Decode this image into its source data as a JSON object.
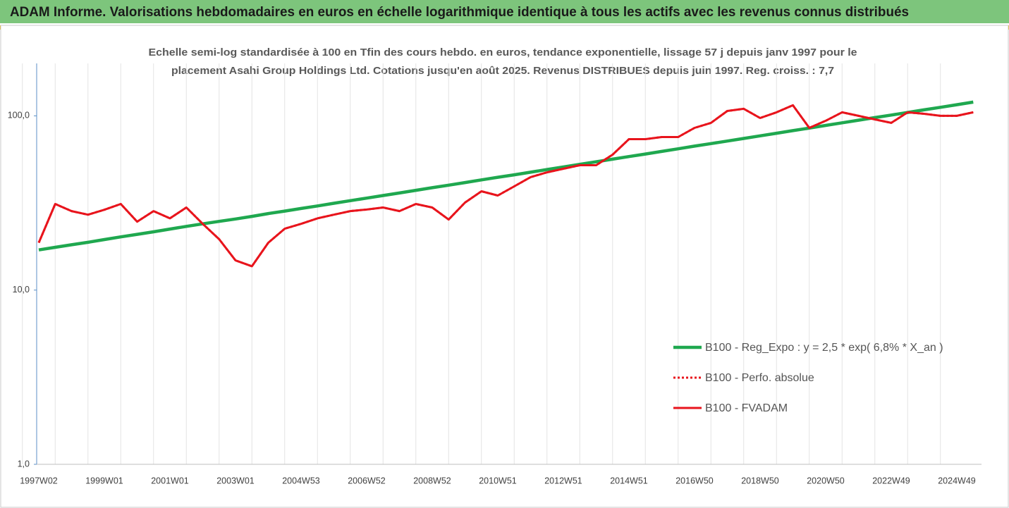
{
  "header": {
    "title": "ADAM Informe. Valorisations hebdomadaires en euros en échelle logarithmique identique à tous les actifs avec les revenus connus distribués"
  },
  "chart_data": {
    "type": "line",
    "title": [
      "Echelle semi-log standardisée à 100 en Tfin des cours hebdo. en euros, tendance exponentielle, lissage 57 j depuis janv 1997 pour le",
      "placement Asahi Group Holdings Ltd. Cotations jusqu'en août 2025. Revenus DISTRIBUES depuis juin 1997. Reg. croiss. : 7,7"
    ],
    "log_y": true,
    "ylim": [
      1,
      200
    ],
    "yticks": [
      {
        "value": 1,
        "label": "1,0"
      },
      {
        "value": 10,
        "label": "10,0"
      },
      {
        "value": 100,
        "label": "100,0"
      }
    ],
    "legend": "right",
    "categories": [
      "1997W02",
      null,
      null,
      null,
      "1999W01",
      null,
      null,
      null,
      "2001W01",
      null,
      null,
      null,
      "2003W01",
      null,
      null,
      null,
      "2004W53",
      null,
      null,
      null,
      "2006W52",
      null,
      null,
      null,
      "2008W52",
      null,
      null,
      null,
      "2010W51",
      null,
      null,
      null,
      "2012W51",
      null,
      null,
      null,
      "2014W51",
      null,
      null,
      null,
      "2016W50",
      null,
      null,
      null,
      "2018W50",
      null,
      null,
      null,
      "2020W50",
      null,
      null,
      null,
      "2022W49",
      null,
      null,
      null,
      "2024W49",
      null
    ],
    "series": [
      {
        "name": "B100 - Reg_Expo : y = 2,5 * exp( 6,8% *  X_an )",
        "color": "#1fa84f",
        "style": "solid",
        "values": [
          17.0,
          17.6,
          18.2,
          18.8,
          19.5,
          20.2,
          20.9,
          21.6,
          22.4,
          23.2,
          24.0,
          24.8,
          25.6,
          26.5,
          27.5,
          28.4,
          29.4,
          30.4,
          31.5,
          32.6,
          33.7,
          34.9,
          36.1,
          37.4,
          38.7,
          40.0,
          41.4,
          42.9,
          44.4,
          45.9,
          47.5,
          49.2,
          50.9,
          52.7,
          54.5,
          56.4,
          58.4,
          60.4,
          62.5,
          64.7,
          67.0,
          69.3,
          71.7,
          74.2,
          76.8,
          79.5,
          82.3,
          85.1,
          88.1,
          91.2,
          94.4,
          97.7,
          101.1,
          104.6,
          108.3,
          112.0,
          115.9,
          120.0
        ]
      },
      {
        "name": "B100 - Perfo. absolue",
        "color": "#e8141c",
        "style": "dotted",
        "values": [
          18.7,
          31.2,
          28.4,
          27.1,
          28.9,
          31.2,
          24.7,
          28.4,
          25.8,
          29.8,
          24.0,
          19.6,
          14.8,
          13.7,
          18.7,
          22.5,
          24.0,
          25.8,
          27.1,
          28.4,
          29.0,
          29.8,
          28.4,
          31.2,
          29.8,
          25.4,
          31.8,
          36.9,
          34.9,
          39.4,
          44.5,
          47.4,
          49.7,
          52.1,
          52.1,
          59.9,
          73.5,
          73.5,
          75.6,
          75.6,
          85.3,
          91.1,
          106.7,
          109.8,
          97.2,
          104.8,
          115.0,
          85.3,
          93.7,
          104.8,
          100,
          95.4,
          91.1,
          104.8,
          102.8,
          100,
          100,
          104.8
        ]
      },
      {
        "name": "B100 - FVADAM",
        "color": "#e8141c",
        "style": "solid",
        "values": [
          18.7,
          31.2,
          28.4,
          27.1,
          28.9,
          31.2,
          24.7,
          28.4,
          25.8,
          29.8,
          24.0,
          19.6,
          14.8,
          13.7,
          18.7,
          22.5,
          24.0,
          25.8,
          27.1,
          28.4,
          29.0,
          29.8,
          28.4,
          31.2,
          29.8,
          25.4,
          31.8,
          36.9,
          34.9,
          39.4,
          44.5,
          47.4,
          49.7,
          52.1,
          52.1,
          59.9,
          73.5,
          73.5,
          75.6,
          75.6,
          85.3,
          91.1,
          106.7,
          109.8,
          97.2,
          104.8,
          115.0,
          85.3,
          93.7,
          104.8,
          100,
          95.4,
          91.1,
          104.8,
          102.8,
          100,
          100,
          104.8
        ]
      }
    ]
  }
}
